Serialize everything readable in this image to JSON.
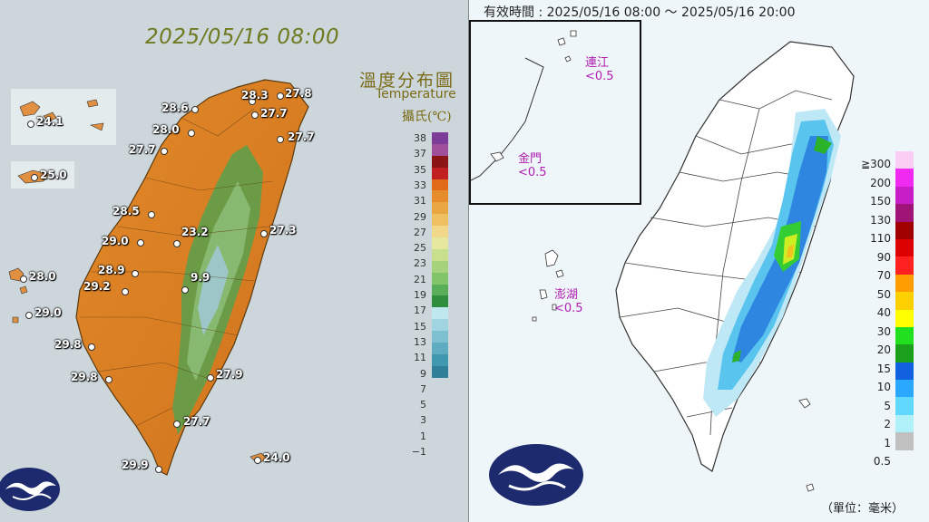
{
  "left_panel": {
    "datetime": "2025/05/16 08:00",
    "legend_title_zh": "溫度分布圖",
    "legend_title_en": "Temperature",
    "legend_unit": "攝氏(℃)",
    "legend_ticks": [
      "38",
      "37",
      "35",
      "33",
      "31",
      "29",
      "27",
      "25",
      "23",
      "21",
      "19",
      "17",
      "15",
      "13",
      "11",
      "9",
      "7",
      "5",
      "3",
      "1",
      "−1"
    ],
    "stations": [
      "24.1",
      "25.0",
      "28.0",
      "29.0",
      "28.6",
      "28.0",
      "27.7",
      "28.5",
      "29.0",
      "28.9",
      "29.2",
      "29.8",
      "29.8",
      "29.9",
      "28.3",
      "27.8",
      "27.7",
      "27.7",
      "23.2",
      "27.3",
      "9.9",
      "27.9",
      "27.7",
      "24.0"
    ]
  },
  "right_panel": {
    "valid_time": "有效時間 : 2025/05/16 08:00 ～ 2025/05/16 20:00",
    "inset_labels": [
      {
        "name": "連江",
        "value": "<0.5"
      },
      {
        "name": "金門",
        "value": "<0.5"
      }
    ],
    "penghu": {
      "name": "澎湖",
      "value": "<0.5"
    },
    "legend_ticks": [
      "≧300",
      "200",
      "150",
      "130",
      "110",
      "90",
      "70",
      "50",
      "40",
      "30",
      "20",
      "15",
      "10",
      "5",
      "2",
      "1",
      "0.5"
    ],
    "unit": "（單位：毫米）"
  }
}
